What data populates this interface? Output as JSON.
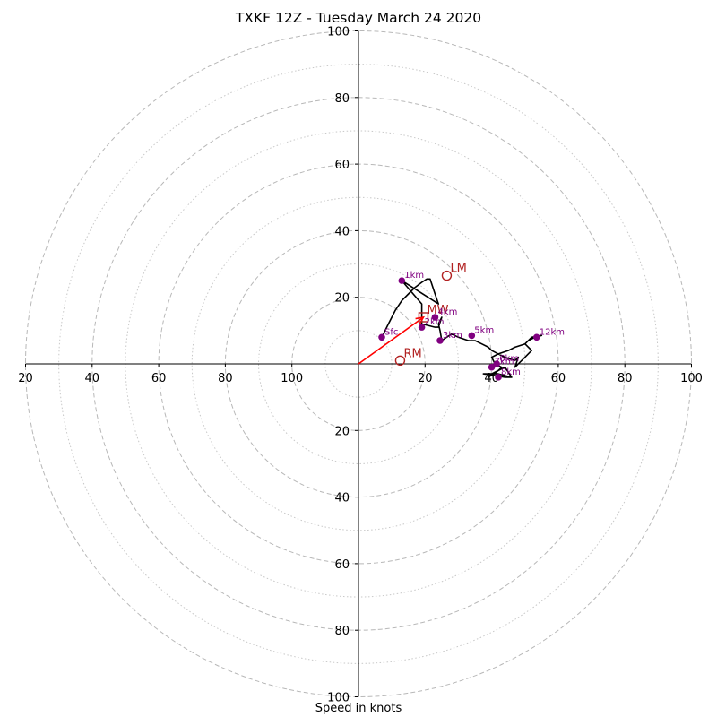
{
  "title": "TXKF 12Z - Tuesday March 24 2020",
  "chart_data": {
    "type": "scatter",
    "title": "TXKF 12Z - Tuesday March 24 2020",
    "xlabel": "Speed in knots",
    "ylabel": "",
    "xlim": [
      -100,
      100
    ],
    "ylim": [
      -100,
      100
    ],
    "rings_major": [
      20,
      40,
      60,
      80,
      100
    ],
    "rings_minor": [
      10,
      30,
      50,
      70,
      90
    ],
    "grid": true,
    "axis_ticks": {
      "x_left": [
        "100",
        "80",
        "60",
        "40",
        "20"
      ],
      "x_right": [
        "20",
        "40",
        "60",
        "80",
        "100"
      ],
      "y_top": [
        "20",
        "40",
        "60",
        "80",
        "100"
      ],
      "y_bottom": [
        "20",
        "40",
        "60",
        "80",
        "100"
      ]
    },
    "series": [
      {
        "name": "hodograph",
        "color": "#000000",
        "x": [
          7,
          9,
          11,
          13,
          15,
          17,
          19,
          20.5,
          21.5,
          22,
          23,
          24,
          13,
          19,
          19,
          23,
          24,
          25,
          24,
          24.5,
          25,
          28,
          30,
          33,
          35,
          37,
          39,
          40,
          42,
          44,
          47,
          48,
          47,
          50,
          52,
          50,
          51,
          53,
          55,
          52,
          50,
          47,
          45,
          42,
          40,
          41,
          43,
          42,
          39,
          40,
          42,
          44,
          46,
          42,
          37.5,
          41,
          44,
          46
        ],
        "y": [
          8,
          12,
          16,
          19,
          21,
          23,
          24.5,
          25.5,
          25.5,
          24,
          21,
          18,
          25,
          18,
          12,
          11,
          11,
          14,
          12,
          10,
          7,
          9,
          8,
          7,
          7,
          6,
          5,
          4,
          3,
          2,
          1,
          2,
          -1,
          2,
          4,
          6,
          7,
          8,
          8.5,
          8,
          6,
          5,
          4,
          3,
          2,
          0,
          -1,
          -2,
          -4,
          -3,
          -2,
          -1,
          -4,
          -3,
          -3,
          -3.5,
          -4,
          -4
        ]
      }
    ],
    "height_points": [
      {
        "label": "Sfc",
        "x": 7,
        "y": 8
      },
      {
        "label": "1km",
        "x": 13,
        "y": 25
      },
      {
        "label": "2km",
        "x": 19,
        "y": 11
      },
      {
        "label": "3km",
        "x": 24.5,
        "y": 7
      },
      {
        "label": "4km",
        "x": 23,
        "y": 14
      },
      {
        "label": "5km",
        "x": 34,
        "y": 8.5
      },
      {
        "label": "6km",
        "x": 41.5,
        "y": 0
      },
      {
        "label": "7km",
        "x": 40,
        "y": -1
      },
      {
        "label": "8km",
        "x": 42,
        "y": -4
      },
      {
        "label": "12km",
        "x": 53.5,
        "y": 8
      }
    ],
    "motion_points": [
      {
        "label": "LM",
        "x": 26.5,
        "y": 26.5,
        "marker": "circle"
      },
      {
        "label": "MW",
        "x": 19.5,
        "y": 14,
        "marker": "square"
      },
      {
        "label": "RM",
        "x": 12.5,
        "y": 1,
        "marker": "circle"
      }
    ],
    "bunkers_vector": {
      "x0": 0,
      "y0": 0,
      "x1": 19.5,
      "y1": 14,
      "color": "#ff0000"
    }
  }
}
